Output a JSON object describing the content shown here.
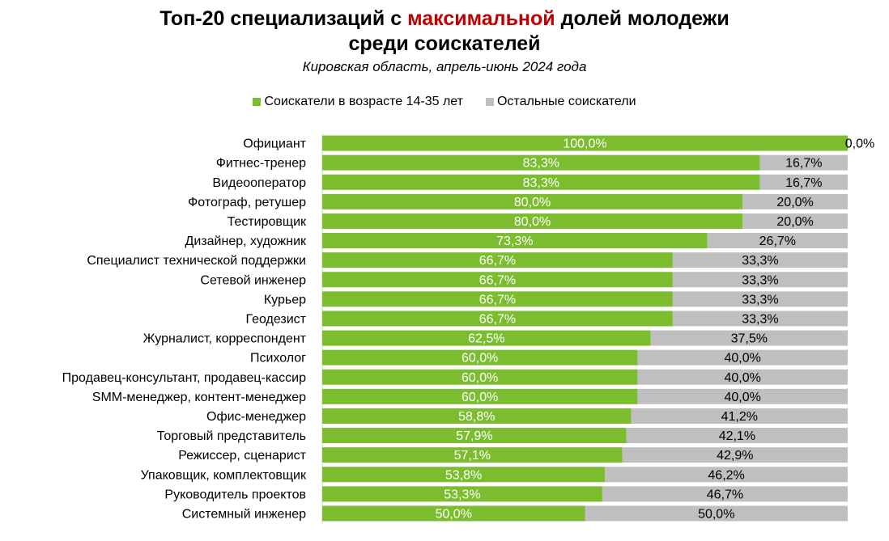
{
  "title": {
    "part1": "Топ-20 специализаций с ",
    "highlight": "максимальной",
    "part2": " долей молодежи",
    "line2": "среди соискателей"
  },
  "subtitle": "Кировская область, апрель-июнь 2024 года",
  "colors": {
    "young": "#7cbd2f",
    "other": "#bfbfbf",
    "highlight": "#c00000"
  },
  "chart_data": {
    "type": "bar",
    "orientation": "horizontal",
    "stacked": "100%",
    "categories": [
      "Официант",
      "Фитнес-тренер",
      "Видеооператор",
      "Фотограф, ретушер",
      "Тестировщик",
      "Дизайнер, художник",
      "Специалист технической поддержки",
      "Сетевой инженер",
      "Курьер",
      "Геодезист",
      "Журналист, корреспондент",
      "Психолог",
      "Продавец-консультант, продавец-кассир",
      "SMM-менеджер, контент-менеджер",
      "Офис-менеджер",
      "Торговый представитель",
      "Режиссер, сценарист",
      "Упаковщик, комплектовщик",
      "Руководитель проектов",
      "Системный инженер"
    ],
    "series": [
      {
        "name": "Соискатели в возрасте 14-35 лет",
        "values": [
          100.0,
          83.3,
          83.3,
          80.0,
          80.0,
          73.3,
          66.7,
          66.7,
          66.7,
          66.7,
          62.5,
          60.0,
          60.0,
          60.0,
          58.8,
          57.9,
          57.1,
          53.8,
          53.3,
          50.0
        ],
        "labels": [
          "100,0%",
          "83,3%",
          "83,3%",
          "80,0%",
          "80,0%",
          "73,3%",
          "66,7%",
          "66,7%",
          "66,7%",
          "66,7%",
          "62,5%",
          "60,0%",
          "60,0%",
          "60,0%",
          "58,8%",
          "57,9%",
          "57,1%",
          "53,8%",
          "53,3%",
          "50,0%"
        ]
      },
      {
        "name": "Остальные соискатели",
        "values": [
          0.0,
          16.7,
          16.7,
          20.0,
          20.0,
          26.7,
          33.3,
          33.3,
          33.3,
          33.3,
          37.5,
          40.0,
          40.0,
          40.0,
          41.2,
          42.1,
          42.9,
          46.2,
          46.7,
          50.0
        ],
        "labels": [
          "0,0%",
          "16,7%",
          "16,7%",
          "20,0%",
          "20,0%",
          "26,7%",
          "33,3%",
          "33,3%",
          "33,3%",
          "33,3%",
          "37,5%",
          "40,0%",
          "40,0%",
          "40,0%",
          "41,2%",
          "42,1%",
          "42,9%",
          "46,2%",
          "46,7%",
          "50,0%"
        ]
      }
    ],
    "xlim": [
      0,
      100
    ],
    "legend_position": "top",
    "grid": false
  }
}
